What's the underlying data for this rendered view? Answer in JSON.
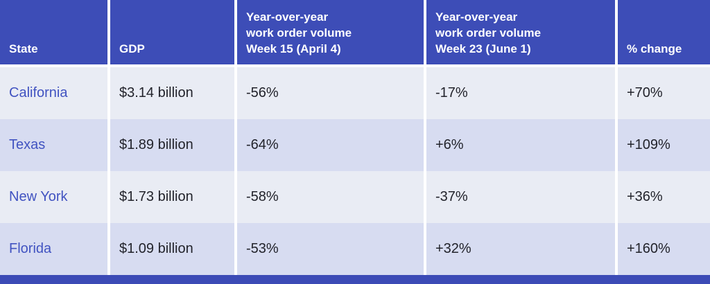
{
  "theme": {
    "header_bg": "#3d4db7",
    "footer_bar": "#3c4bb6",
    "row_light": "#e9ecf4",
    "row_dark": "#d7dcf1",
    "state_color": "#4153c1",
    "cell_text": "#22232b",
    "separator": "#ffffff"
  },
  "table": {
    "columns": [
      {
        "lines": [
          "State"
        ]
      },
      {
        "lines": [
          "GDP"
        ]
      },
      {
        "lines": [
          "Year-over-year",
          "work order volume",
          "Week 15 (April 4)"
        ]
      },
      {
        "lines": [
          "Year-over-year",
          "work order volume",
          "Week 23 (June 1)"
        ]
      },
      {
        "lines": [
          "% change"
        ]
      }
    ],
    "rows": [
      {
        "state": "California",
        "gdp": "$3.14 billion",
        "week15": "-56%",
        "week23": "-17%",
        "pct_change": "+70%"
      },
      {
        "state": "Texas",
        "gdp": "$1.89 billion",
        "week15": "-64%",
        "week23": "+6%",
        "pct_change": "+109%"
      },
      {
        "state": "New York",
        "gdp": "$1.73 billion",
        "week15": "-58%",
        "week23": "-37%",
        "pct_change": "+36%"
      },
      {
        "state": "Florida",
        "gdp": "$1.09 billion",
        "week15": "-53%",
        "week23": "+32%",
        "pct_change": "+160%"
      }
    ]
  },
  "chart_data": {
    "type": "table",
    "columns": [
      "State",
      "GDP",
      "Year-over-year work order volume Week 15 (April 4)",
      "Year-over-year work order volume Week 23 (June 1)",
      "% change"
    ],
    "rows": [
      [
        "California",
        "$3.14 billion",
        "-56%",
        "-17%",
        "+70%"
      ],
      [
        "Texas",
        "$1.89 billion",
        "-64%",
        "+6%",
        "+109%"
      ],
      [
        "New York",
        "$1.73 billion",
        "-58%",
        "-37%",
        "+36%"
      ],
      [
        "Florida",
        "$1.09 billion",
        "-53%",
        "+32%",
        "+160%"
      ]
    ]
  }
}
